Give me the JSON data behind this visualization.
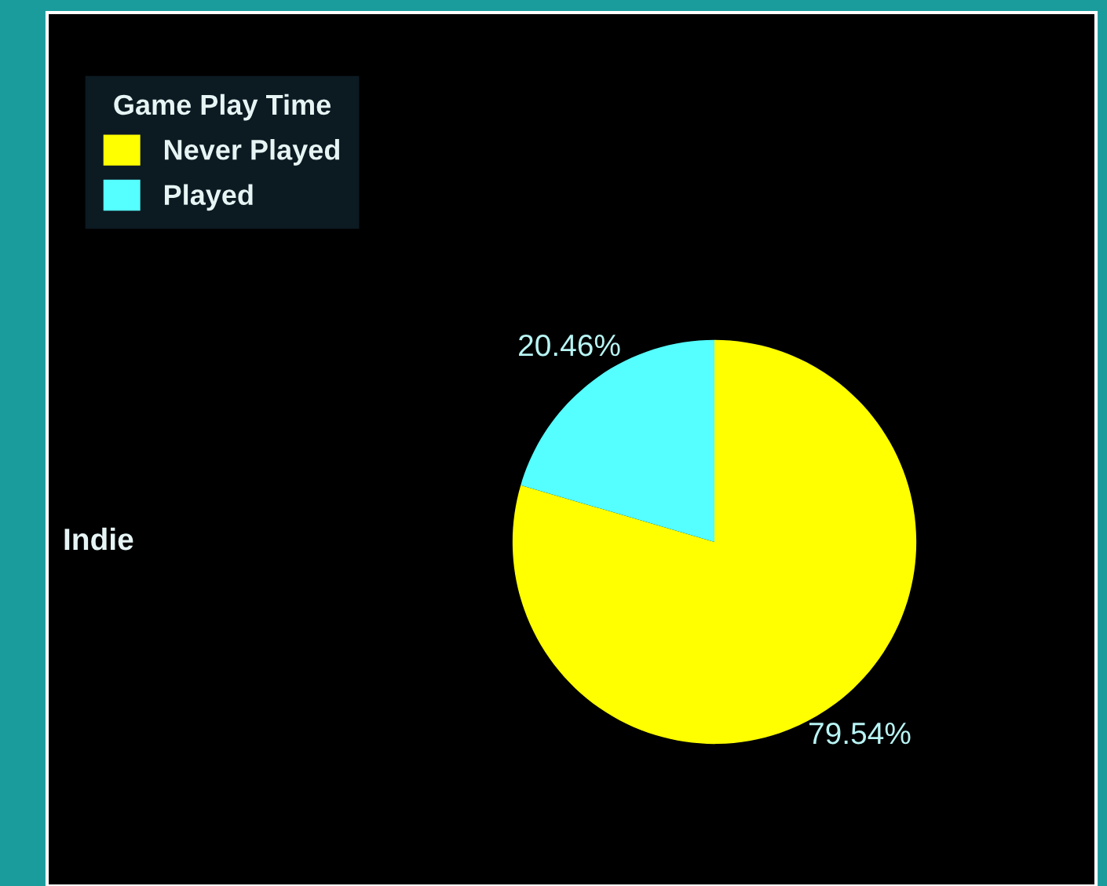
{
  "chart_data": {
    "type": "pie",
    "ylabel": "Indie",
    "legend_title": "Game Play Time",
    "legend": "top left",
    "categories": [
      "Never Played",
      "Played"
    ],
    "values": [
      79.54,
      20.46
    ],
    "colors": [
      "#ffff00",
      "#55ffff"
    ],
    "value_labels": [
      "79.54%",
      "20.46%"
    ]
  }
}
